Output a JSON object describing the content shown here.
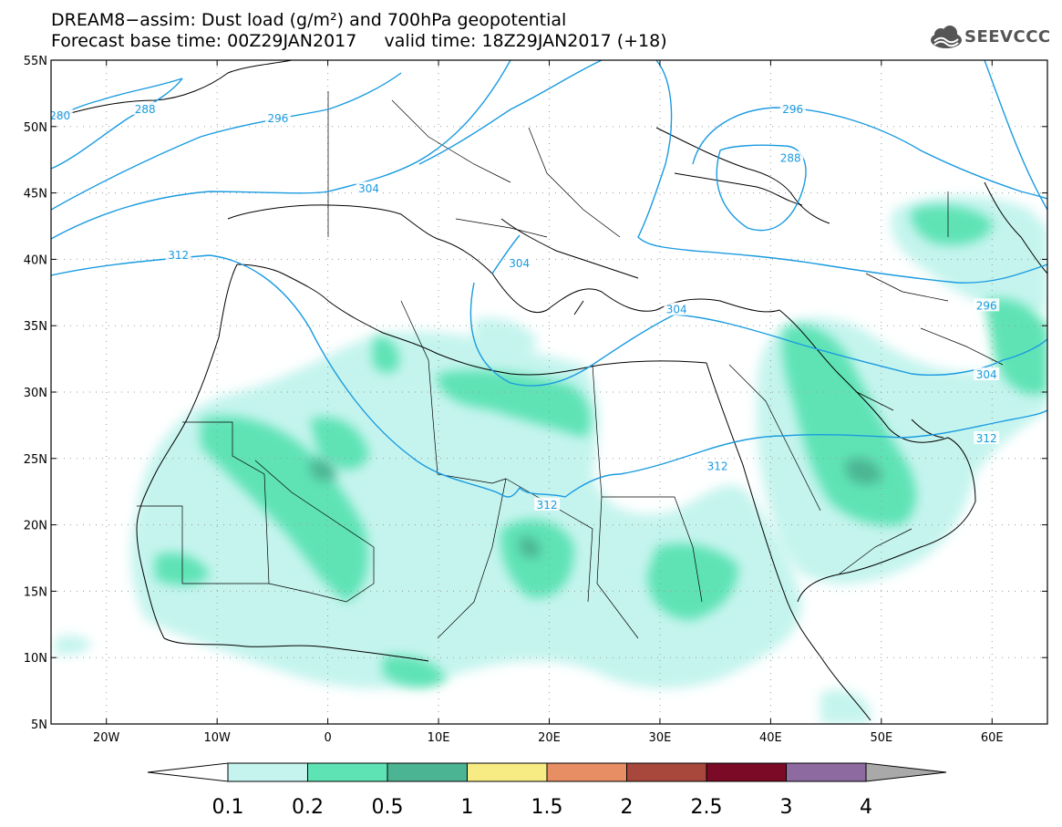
{
  "header": {
    "title_line1": "DREAM8−assim: Dust load (g/m²) and 700hPa geopotential",
    "title_line2": "Forecast base time: 00Z29JAN2017     valid time: 18Z29JAN2017 (+18)",
    "logo_text": "SEEVCCC"
  },
  "map": {
    "lon_range": [
      -25,
      65
    ],
    "lat_range": [
      5,
      55
    ],
    "lon_ticks": [
      {
        "value": -20,
        "label": "20W"
      },
      {
        "value": -10,
        "label": "10W"
      },
      {
        "value": 0,
        "label": "0"
      },
      {
        "value": 10,
        "label": "10E"
      },
      {
        "value": 20,
        "label": "20E"
      },
      {
        "value": 30,
        "label": "30E"
      },
      {
        "value": 40,
        "label": "40E"
      },
      {
        "value": 50,
        "label": "50E"
      },
      {
        "value": 60,
        "label": "60E"
      }
    ],
    "lat_ticks": [
      {
        "value": 55,
        "label": "55N"
      },
      {
        "value": 50,
        "label": "50N"
      },
      {
        "value": 45,
        "label": "45N"
      },
      {
        "value": 40,
        "label": "40N"
      },
      {
        "value": 35,
        "label": "35N"
      },
      {
        "value": 30,
        "label": "30N"
      },
      {
        "value": 25,
        "label": "25N"
      },
      {
        "value": 20,
        "label": "20N"
      },
      {
        "value": 15,
        "label": "15N"
      },
      {
        "value": 10,
        "label": "10N"
      },
      {
        "value": 5,
        "label": "5N"
      }
    ],
    "contour_color": "#1a9be0",
    "contour_labels": [
      {
        "text": "280",
        "lon": -24.2,
        "lat": 50.8
      },
      {
        "text": "288",
        "lon": -16.5,
        "lat": 51.3
      },
      {
        "text": "296",
        "lon": -4.5,
        "lat": 50.6
      },
      {
        "text": "304",
        "lon": 3.7,
        "lat": 45.3
      },
      {
        "text": "312",
        "lon": -13.5,
        "lat": 40.3
      },
      {
        "text": "304",
        "lon": 17.3,
        "lat": 39.7
      },
      {
        "text": "304",
        "lon": 31.5,
        "lat": 36.2
      },
      {
        "text": "296",
        "lon": 42.0,
        "lat": 51.3
      },
      {
        "text": "288",
        "lon": 41.8,
        "lat": 47.6
      },
      {
        "text": "296",
        "lon": 59.5,
        "lat": 36.5
      },
      {
        "text": "304",
        "lon": 59.5,
        "lat": 31.3
      },
      {
        "text": "312",
        "lon": 59.5,
        "lat": 26.5
      },
      {
        "text": "312",
        "lon": 35.2,
        "lat": 24.4
      },
      {
        "text": "312",
        "lon": 19.8,
        "lat": 21.5
      }
    ],
    "dust_colors": [
      "#bff0e9",
      "#5ee3b5",
      "#4bb593"
    ]
  },
  "colorbar": {
    "labels": [
      "0.1",
      "0.2",
      "0.5",
      "1",
      "1.5",
      "2",
      "2.5",
      "3",
      "4"
    ],
    "colors": [
      "#ffffff",
      "#c5f4ee",
      "#5ee3b5",
      "#4bb593",
      "#f7ec83",
      "#e88e64",
      "#a8473b",
      "#7a0a25",
      "#8d6aa0",
      "#a9a9a9"
    ]
  }
}
